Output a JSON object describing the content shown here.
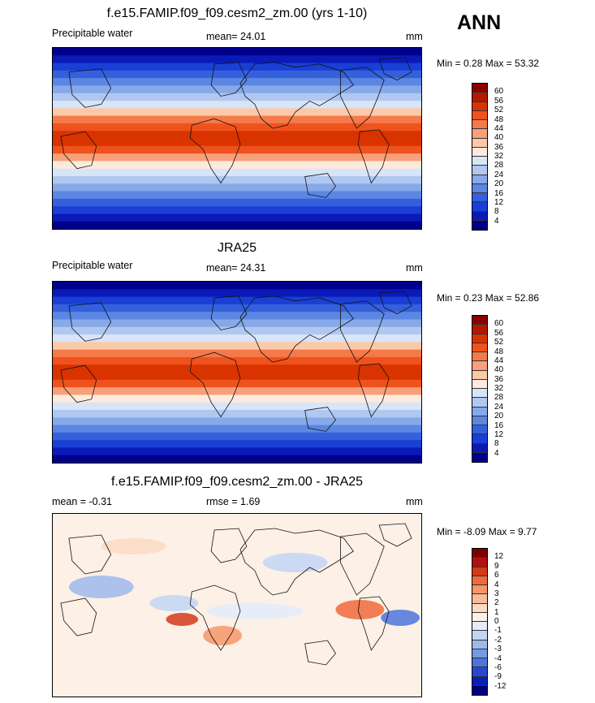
{
  "season": "ANN",
  "panels": [
    {
      "title": "f.e15.FAMIP.f09_f09.cesm2_zm.00 (yrs 1-10)",
      "left_label": "Precipitable water",
      "center_label": "mean=  24.01",
      "right_label": "mm",
      "minmax": "Min =   0.28 Max =  53.32",
      "type": "abs",
      "levels": [
        "60",
        "56",
        "52",
        "48",
        "44",
        "40",
        "36",
        "32",
        "28",
        "24",
        "20",
        "16",
        "12",
        "8",
        "4"
      ]
    },
    {
      "title": "JRA25",
      "left_label": "Precipitable water",
      "center_label": "mean=  24.31",
      "right_label": "mm",
      "minmax": "Min =   0.23 Max =  52.86",
      "type": "abs",
      "levels": [
        "60",
        "56",
        "52",
        "48",
        "44",
        "40",
        "36",
        "32",
        "28",
        "24",
        "20",
        "16",
        "12",
        "8",
        "4"
      ]
    },
    {
      "title": "f.e15.FAMIP.f09_f09.cesm2_zm.00 - JRA25",
      "left_label": "mean =  -0.31",
      "center_label": "rmse =   1.69",
      "right_label": "mm",
      "minmax": "Min =  -8.09 Max =   9.77",
      "type": "diff",
      "levels": [
        "12",
        "9",
        "6",
        "4",
        "3",
        "2",
        "1",
        "0",
        "-1",
        "-2",
        "-3",
        "-4",
        "-6",
        "-9",
        "-12"
      ]
    }
  ],
  "colors": {
    "abs_scale": [
      "#8b0000",
      "#b21a00",
      "#d93300",
      "#f0521d",
      "#f57a4a",
      "#f8a07a",
      "#fbc9a8",
      "#fdeadc",
      "#d8e4f7",
      "#b0c8f0",
      "#86a9e9",
      "#5b86e2",
      "#3560dc",
      "#1a3fd4",
      "#0a1ab8",
      "#00008b"
    ],
    "diff_scale": [
      "#7b0000",
      "#b01010",
      "#d23a1a",
      "#ee6a3a",
      "#f6966a",
      "#f8bc98",
      "#fbd9c2",
      "#fdf0e6",
      "#e3ecfa",
      "#c2d6f3",
      "#9db9ec",
      "#769be4",
      "#4d74db",
      "#2a47cf",
      "#0c1fb4",
      "#00007a"
    ]
  }
}
